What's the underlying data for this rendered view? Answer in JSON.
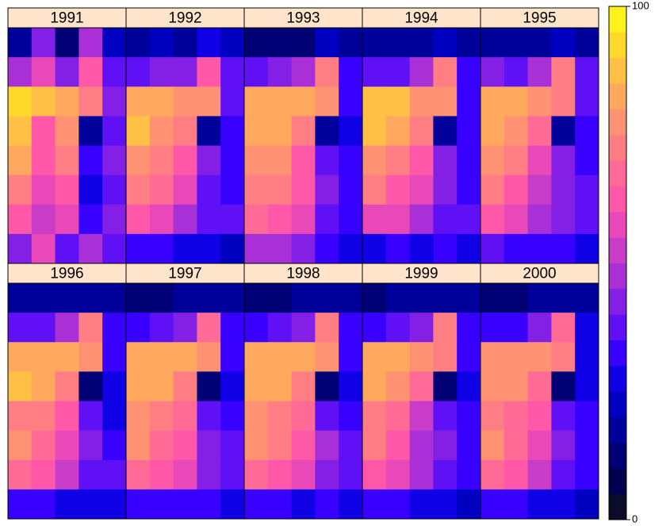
{
  "chart_data": {
    "type": "heatmap",
    "zlim": [
      0,
      100
    ],
    "zticks": [
      0,
      100
    ],
    "colors": [
      "#0b0b2a",
      "#00004e",
      "#000074",
      "#00009a",
      "#0000c0",
      "#1000e6",
      "#3800ff",
      "#6010f4",
      "#8420e6",
      "#a830d6",
      "#c83cc8",
      "#e848b8",
      "#ff58a8",
      "#ff6a96",
      "#ff7e84",
      "#ff9272",
      "#ffa85e",
      "#ffc046",
      "#ffd82c",
      "#fff21a"
    ],
    "panels": [
      {
        "title": "1991",
        "values": [
          [
            15,
            40,
            10,
            45,
            20
          ],
          [
            45,
            55,
            40,
            60,
            35
          ],
          [
            90,
            85,
            80,
            70,
            40
          ],
          [
            85,
            60,
            75,
            15,
            35
          ],
          [
            80,
            60,
            70,
            30,
            40
          ],
          [
            70,
            55,
            60,
            25,
            35
          ],
          [
            60,
            50,
            55,
            30,
            40
          ],
          [
            40,
            55,
            35,
            45,
            35
          ]
        ]
      },
      {
        "title": "1992",
        "values": [
          [
            15,
            20,
            15,
            25,
            20
          ],
          [
            35,
            40,
            40,
            60,
            35
          ],
          [
            80,
            80,
            75,
            75,
            35
          ],
          [
            85,
            75,
            70,
            15,
            30
          ],
          [
            75,
            70,
            60,
            40,
            30
          ],
          [
            70,
            65,
            55,
            35,
            30
          ],
          [
            60,
            55,
            45,
            35,
            35
          ],
          [
            30,
            30,
            25,
            25,
            20
          ]
        ]
      },
      {
        "title": "1993",
        "values": [
          [
            10,
            10,
            10,
            20,
            15
          ],
          [
            35,
            40,
            45,
            70,
            30
          ],
          [
            80,
            80,
            80,
            75,
            30
          ],
          [
            80,
            80,
            70,
            15,
            25
          ],
          [
            75,
            75,
            60,
            35,
            30
          ],
          [
            70,
            70,
            60,
            40,
            30
          ],
          [
            65,
            60,
            55,
            35,
            30
          ],
          [
            45,
            45,
            40,
            30,
            25
          ]
        ]
      },
      {
        "title": "1994",
        "values": [
          [
            15,
            15,
            15,
            20,
            15
          ],
          [
            35,
            35,
            45,
            70,
            30
          ],
          [
            85,
            85,
            75,
            75,
            30
          ],
          [
            85,
            80,
            70,
            15,
            30
          ],
          [
            75,
            70,
            60,
            40,
            30
          ],
          [
            70,
            60,
            55,
            40,
            30
          ],
          [
            55,
            55,
            45,
            35,
            35
          ],
          [
            25,
            30,
            25,
            30,
            25
          ]
        ]
      },
      {
        "title": "1995",
        "values": [
          [
            15,
            15,
            15,
            20,
            15
          ],
          [
            40,
            35,
            45,
            70,
            35
          ],
          [
            80,
            80,
            75,
            70,
            35
          ],
          [
            80,
            75,
            65,
            15,
            30
          ],
          [
            75,
            70,
            55,
            40,
            30
          ],
          [
            70,
            60,
            50,
            40,
            35
          ],
          [
            60,
            55,
            45,
            40,
            35
          ],
          [
            35,
            30,
            30,
            30,
            25
          ]
        ]
      },
      {
        "title": "1996",
        "values": [
          [
            15,
            15,
            15,
            15,
            15
          ],
          [
            35,
            35,
            45,
            70,
            30
          ],
          [
            80,
            80,
            80,
            75,
            30
          ],
          [
            85,
            80,
            70,
            10,
            25
          ],
          [
            70,
            70,
            60,
            35,
            25
          ],
          [
            75,
            65,
            55,
            40,
            30
          ],
          [
            65,
            60,
            50,
            35,
            35
          ],
          [
            30,
            30,
            25,
            25,
            25
          ]
        ]
      },
      {
        "title": "1997",
        "values": [
          [
            10,
            10,
            15,
            15,
            15
          ],
          [
            30,
            35,
            40,
            65,
            30
          ],
          [
            80,
            80,
            80,
            75,
            30
          ],
          [
            80,
            80,
            70,
            10,
            25
          ],
          [
            75,
            70,
            65,
            35,
            30
          ],
          [
            75,
            65,
            60,
            40,
            35
          ],
          [
            65,
            60,
            55,
            40,
            35
          ],
          [
            30,
            30,
            30,
            30,
            25
          ]
        ]
      },
      {
        "title": "1998",
        "values": [
          [
            10,
            10,
            15,
            15,
            15
          ],
          [
            30,
            35,
            40,
            70,
            30
          ],
          [
            80,
            80,
            80,
            75,
            30
          ],
          [
            80,
            80,
            70,
            10,
            25
          ],
          [
            75,
            70,
            65,
            35,
            30
          ],
          [
            75,
            70,
            60,
            45,
            35
          ],
          [
            65,
            60,
            55,
            40,
            35
          ],
          [
            30,
            30,
            25,
            30,
            25
          ]
        ]
      },
      {
        "title": "1999",
        "values": [
          [
            10,
            15,
            15,
            15,
            15
          ],
          [
            30,
            35,
            40,
            70,
            30
          ],
          [
            80,
            80,
            75,
            70,
            30
          ],
          [
            80,
            75,
            65,
            10,
            25
          ],
          [
            70,
            65,
            50,
            35,
            30
          ],
          [
            70,
            60,
            45,
            40,
            30
          ],
          [
            60,
            55,
            45,
            35,
            30
          ],
          [
            30,
            30,
            25,
            25,
            20
          ]
        ]
      },
      {
        "title": "2000",
        "values": [
          [
            10,
            10,
            15,
            15,
            15
          ],
          [
            30,
            30,
            40,
            65,
            25
          ],
          [
            75,
            75,
            75,
            70,
            25
          ],
          [
            75,
            75,
            65,
            10,
            25
          ],
          [
            70,
            65,
            60,
            35,
            30
          ],
          [
            75,
            65,
            55,
            40,
            30
          ],
          [
            65,
            60,
            50,
            35,
            30
          ],
          [
            30,
            30,
            25,
            25,
            20
          ]
        ]
      }
    ]
  }
}
